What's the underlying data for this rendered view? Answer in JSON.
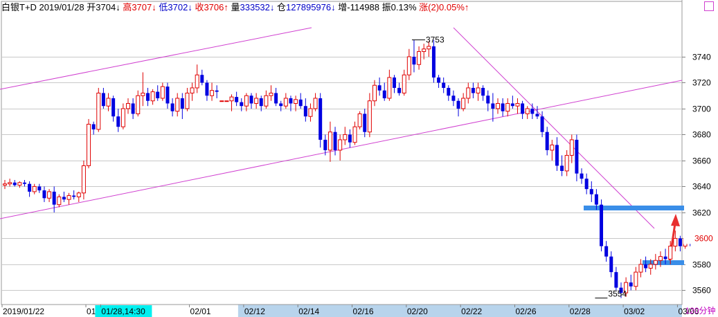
{
  "header": {
    "name": "白银T+D",
    "date": "2019/01/28",
    "open_label": "开",
    "open": "3704",
    "open_arrow": "↓",
    "high_label": "高",
    "high": "3707",
    "high_arrow": "↓",
    "low_label": "低",
    "low": "3702",
    "low_arrow": "↓",
    "close_label": "收",
    "close": "3706",
    "close_arrow": "↑",
    "volume_label": "量",
    "volume": "333532",
    "volume_arrow": "↓",
    "oi_label": "仓",
    "oi": "127895976",
    "oi_arrow": "↓",
    "change_label": "增",
    "change": "-114988",
    "amp_label": "振",
    "amp": "0.13%",
    "rise_label": "涨",
    "rise": "(2)0.05%",
    "rise_arrow": "↑"
  },
  "period_label": "120分钟",
  "colors": {
    "up": "#e00000",
    "down": "#0000e0",
    "trendline": "#d040d0",
    "support": "#3a8ee8",
    "arrow": "#e83030"
  },
  "chart_data": {
    "type": "candlestick",
    "ylim": [
      3549,
      3772
    ],
    "y_ticks": [
      3560,
      3580,
      3600,
      3620,
      3640,
      3660,
      3680,
      3700,
      3720,
      3740
    ],
    "current_price": "3600",
    "annotations": {
      "high": "3753",
      "low": "3554"
    },
    "x_labels": [
      "2019/01/22",
      "01/",
      "01/28,14:30",
      "02/01",
      "02/12",
      "02/14",
      "02/16",
      "02/20",
      "02/22",
      "02/26",
      "02/28",
      "03/02",
      "03/06"
    ],
    "x_label_index": [
      0,
      17,
      20,
      38,
      49,
      60,
      71,
      82,
      93,
      104,
      115,
      126,
      137
    ],
    "highlight_label": "01/28,14:30",
    "shaded_axis_from": "02/12",
    "candles": [
      [
        3641,
        3645,
        3638,
        3642
      ],
      [
        3642,
        3646,
        3640,
        3643
      ],
      [
        3643,
        3645,
        3640,
        3641
      ],
      [
        3641,
        3644,
        3639,
        3643
      ],
      [
        3643,
        3645,
        3640,
        3642
      ],
      [
        3642,
        3644,
        3632,
        3636
      ],
      [
        3636,
        3642,
        3634,
        3640
      ],
      [
        3640,
        3642,
        3635,
        3637
      ],
      [
        3637,
        3640,
        3628,
        3631
      ],
      [
        3631,
        3638,
        3628,
        3636
      ],
      [
        3636,
        3640,
        3620,
        3626
      ],
      [
        3626,
        3634,
        3624,
        3632
      ],
      [
        3632,
        3636,
        3628,
        3630
      ],
      [
        3630,
        3635,
        3626,
        3633
      ],
      [
        3633,
        3637,
        3630,
        3632
      ],
      [
        3632,
        3636,
        3628,
        3635
      ],
      [
        3635,
        3660,
        3630,
        3656
      ],
      [
        3656,
        3692,
        3654,
        3688
      ],
      [
        3688,
        3690,
        3680,
        3684
      ],
      [
        3684,
        3716,
        3682,
        3712
      ],
      [
        3712,
        3716,
        3700,
        3702
      ],
      [
        3702,
        3712,
        3698,
        3708
      ],
      [
        3708,
        3710,
        3690,
        3694
      ],
      [
        3694,
        3700,
        3682,
        3686
      ],
      [
        3686,
        3704,
        3684,
        3700
      ],
      [
        3700,
        3708,
        3696,
        3704
      ],
      [
        3704,
        3708,
        3692,
        3696
      ],
      [
        3696,
        3714,
        3694,
        3710
      ],
      [
        3710,
        3728,
        3702,
        3712
      ],
      [
        3712,
        3716,
        3702,
        3706
      ],
      [
        3706,
        3715,
        3703,
        3713
      ],
      [
        3713,
        3718,
        3706,
        3708
      ],
      [
        3708,
        3720,
        3706,
        3717
      ],
      [
        3717,
        3720,
        3700,
        3704
      ],
      [
        3704,
        3708,
        3694,
        3698
      ],
      [
        3698,
        3712,
        3694,
        3708
      ],
      [
        3708,
        3712,
        3692,
        3700
      ],
      [
        3700,
        3716,
        3698,
        3712
      ],
      [
        3712,
        3720,
        3706,
        3716
      ],
      [
        3716,
        3734,
        3712,
        3726
      ],
      [
        3726,
        3730,
        3718,
        3720
      ],
      [
        3720,
        3722,
        3706,
        3710
      ],
      [
        3710,
        3720,
        3706,
        3714
      ],
      [
        3714,
        3718,
        3708,
        3713
      ],
      [
        3706,
        3706,
        3706,
        3706
      ],
      [
        3706,
        3706,
        3706,
        3706
      ],
      [
        3706,
        3711,
        3698,
        3709
      ],
      [
        3709,
        3713,
        3702,
        3705
      ],
      [
        3705,
        3708,
        3698,
        3702
      ],
      [
        3702,
        3712,
        3698,
        3710
      ],
      [
        3710,
        3712,
        3700,
        3704
      ],
      [
        3704,
        3712,
        3700,
        3708
      ],
      [
        3708,
        3710,
        3698,
        3702
      ],
      [
        3702,
        3714,
        3700,
        3710
      ],
      [
        3710,
        3718,
        3706,
        3712
      ],
      [
        3712,
        3716,
        3702,
        3704
      ],
      [
        3704,
        3706,
        3698,
        3702
      ],
      [
        3702,
        3712,
        3700,
        3708
      ],
      [
        3708,
        3710,
        3698,
        3704
      ],
      [
        3704,
        3710,
        3698,
        3707
      ],
      [
        3707,
        3712,
        3700,
        3702
      ],
      [
        3702,
        3708,
        3690,
        3694
      ],
      [
        3694,
        3704,
        3690,
        3700
      ],
      [
        3700,
        3712,
        3698,
        3708
      ],
      [
        3708,
        3712,
        3670,
        3676
      ],
      [
        3676,
        3680,
        3664,
        3668
      ],
      [
        3668,
        3690,
        3659,
        3682
      ],
      [
        3682,
        3686,
        3664,
        3668
      ],
      [
        3668,
        3680,
        3660,
        3676
      ],
      [
        3676,
        3686,
        3672,
        3680
      ],
      [
        3680,
        3684,
        3670,
        3674
      ],
      [
        3674,
        3690,
        3672,
        3686
      ],
      [
        3686,
        3698,
        3684,
        3696
      ],
      [
        3696,
        3700,
        3678,
        3682
      ],
      [
        3682,
        3712,
        3678,
        3706
      ],
      [
        3706,
        3722,
        3702,
        3718
      ],
      [
        3718,
        3724,
        3710,
        3714
      ],
      [
        3714,
        3720,
        3706,
        3708
      ],
      [
        3708,
        3730,
        3706,
        3724
      ],
      [
        3724,
        3726,
        3712,
        3716
      ],
      [
        3716,
        3720,
        3710,
        3712
      ],
      [
        3712,
        3730,
        3710,
        3726
      ],
      [
        3726,
        3746,
        3722,
        3740
      ],
      [
        3740,
        3753,
        3728,
        3734
      ],
      [
        3734,
        3748,
        3730,
        3744
      ],
      [
        3744,
        3750,
        3738,
        3746
      ],
      [
        3746,
        3752,
        3740,
        3748
      ],
      [
        3748,
        3753,
        3720,
        3724
      ],
      [
        3724,
        3726,
        3716,
        3720
      ],
      [
        3720,
        3724,
        3712,
        3716
      ],
      [
        3716,
        3718,
        3706,
        3710
      ],
      [
        3710,
        3714,
        3702,
        3706
      ],
      [
        3706,
        3708,
        3694,
        3700
      ],
      [
        3700,
        3712,
        3698,
        3708
      ],
      [
        3708,
        3720,
        3704,
        3716
      ],
      [
        3716,
        3720,
        3708,
        3712
      ],
      [
        3712,
        3720,
        3706,
        3716
      ],
      [
        3716,
        3718,
        3706,
        3710
      ],
      [
        3710,
        3714,
        3698,
        3704
      ],
      [
        3704,
        3712,
        3690,
        3700
      ],
      [
        3700,
        3708,
        3696,
        3704
      ],
      [
        3704,
        3708,
        3694,
        3698
      ],
      [
        3698,
        3708,
        3694,
        3704
      ],
      [
        3704,
        3710,
        3700,
        3702
      ],
      [
        3702,
        3708,
        3696,
        3704
      ],
      [
        3704,
        3706,
        3692,
        3696
      ],
      [
        3696,
        3702,
        3692,
        3700
      ],
      [
        3700,
        3704,
        3692,
        3696
      ],
      [
        3696,
        3702,
        3692,
        3694
      ],
      [
        3694,
        3698,
        3678,
        3682
      ],
      [
        3682,
        3686,
        3664,
        3668
      ],
      [
        3668,
        3676,
        3660,
        3672
      ],
      [
        3672,
        3678,
        3652,
        3656
      ],
      [
        3656,
        3664,
        3648,
        3652
      ],
      [
        3652,
        3668,
        3648,
        3664
      ],
      [
        3664,
        3680,
        3658,
        3676
      ],
      [
        3676,
        3680,
        3644,
        3650
      ],
      [
        3650,
        3654,
        3642,
        3646
      ],
      [
        3646,
        3650,
        3634,
        3638
      ],
      [
        3638,
        3644,
        3628,
        3634
      ],
      [
        3634,
        3638,
        3622,
        3626
      ],
      [
        3626,
        3630,
        3590,
        3594
      ],
      [
        3594,
        3598,
        3582,
        3586
      ],
      [
        3586,
        3590,
        3570,
        3574
      ],
      [
        3574,
        3578,
        3560,
        3562
      ],
      [
        3562,
        3566,
        3554,
        3558
      ],
      [
        3558,
        3570,
        3555,
        3566
      ],
      [
        3566,
        3572,
        3560,
        3563
      ],
      [
        3563,
        3578,
        3560,
        3574
      ],
      [
        3574,
        3584,
        3570,
        3580
      ],
      [
        3580,
        3586,
        3574,
        3577
      ],
      [
        3577,
        3584,
        3572,
        3580
      ],
      [
        3580,
        3588,
        3576,
        3583
      ],
      [
        3583,
        3590,
        3578,
        3586
      ],
      [
        3586,
        3592,
        3580,
        3584
      ],
      [
        3584,
        3598,
        3580,
        3594
      ],
      [
        3594,
        3606,
        3590,
        3600
      ],
      [
        3600,
        3602,
        3590,
        3594
      ],
      [
        3594,
        3604,
        3592,
        3600
      ],
      [
        3600,
        3602,
        3594,
        3598
      ],
      [
        3598,
        3602,
        3596,
        3600
      ]
    ]
  }
}
